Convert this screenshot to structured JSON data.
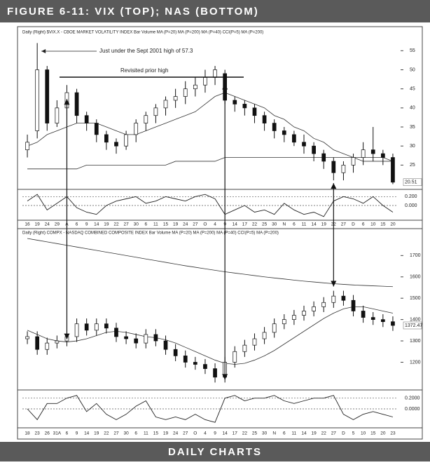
{
  "header": {
    "title": "Figure 6-11: VIX (top); NAS (bottom)"
  },
  "footer": {
    "title": "Daily Charts"
  },
  "chart_data": [
    {
      "type": "candlestick",
      "title": "Daily   (Right) $VIX.X - CBOE MARKET VOLATILITY INDEX     Bar   Volume   MA (P=20)   MA (P=200)   MA (P=40)   CCI(P=5)   MA (P=200)",
      "annotations": [
        "Just under the Sept 2001 high of 57.3",
        "Revisited prior high"
      ],
      "last_label": "20.51",
      "ylim": [
        19,
        58
      ],
      "yticks": [
        25,
        30,
        35,
        40,
        45,
        50,
        55
      ],
      "open": [
        29,
        34,
        50,
        36,
        40,
        44,
        38,
        36,
        33,
        31,
        30,
        33,
        36,
        38,
        40,
        42,
        43,
        45,
        46,
        48,
        49,
        42,
        41,
        40,
        38,
        36,
        34,
        33,
        31,
        30,
        28,
        26,
        23,
        25,
        27,
        29,
        28,
        27
      ],
      "high": [
        33,
        57,
        51,
        42,
        46,
        45,
        39,
        37,
        34,
        32,
        34,
        37,
        39,
        41,
        43,
        45,
        47,
        48,
        50,
        51,
        50,
        43,
        42,
        41,
        39,
        37,
        35,
        34,
        33,
        31,
        29,
        27,
        26,
        28,
        31,
        35,
        29,
        28
      ],
      "low": [
        27,
        32,
        34,
        35,
        38,
        36,
        34,
        31,
        29,
        28,
        29,
        31,
        34,
        36,
        38,
        40,
        41,
        43,
        44,
        46,
        41,
        39,
        38,
        36,
        34,
        32,
        31,
        30,
        28,
        26,
        24,
        21,
        21,
        23,
        25,
        26,
        25,
        20
      ],
      "close": [
        31,
        50,
        36,
        40,
        44,
        38,
        36,
        33,
        31,
        30,
        33,
        36,
        38,
        40,
        42,
        43,
        45,
        46,
        48,
        50,
        42,
        41,
        40,
        38,
        36,
        34,
        33,
        31,
        30,
        28,
        26,
        23,
        25,
        27,
        29,
        28,
        27,
        20.51
      ],
      "series": [
        {
          "color": "#333333",
          "values": [
            30,
            31,
            33,
            34,
            35,
            36,
            36,
            36,
            35,
            34,
            33,
            33,
            34,
            35,
            36,
            37,
            38,
            39,
            41,
            43,
            44,
            43,
            42,
            41,
            40,
            38,
            37,
            35,
            34,
            32,
            31,
            29,
            28,
            27,
            27,
            27,
            27,
            26
          ]
        },
        {
          "color": "#333333",
          "values": [
            24,
            24,
            24,
            24,
            24,
            24,
            25,
            25,
            25,
            25,
            25,
            25,
            25,
            25,
            25,
            26,
            26,
            26,
            26,
            26,
            27,
            27,
            27,
            27,
            27,
            27,
            27,
            27,
            27,
            27,
            27,
            27,
            27,
            27,
            26,
            26,
            26,
            26
          ]
        }
      ]
    },
    {
      "type": "line",
      "ylim": [
        -0.3,
        0.3
      ],
      "yticks": [
        {
          "value": 0.2,
          "label": "0.200"
        },
        {
          "value": 0,
          "label": "0.000"
        }
      ],
      "categories": [
        "16",
        "19",
        "24",
        "29",
        "A",
        "6",
        "9",
        "14",
        "19",
        "22",
        "27",
        "30",
        "6",
        "11",
        "15",
        "19",
        "24",
        "27",
        "O",
        "4",
        "9",
        "14",
        "17",
        "22",
        "25",
        "30",
        "N",
        "6",
        "11",
        "14",
        "19",
        "22",
        "27",
        "D",
        "6",
        "10",
        "15",
        "20"
      ],
      "values": [
        0.1,
        0.25,
        -0.1,
        0.05,
        0.2,
        -0.05,
        -0.15,
        -0.2,
        0.0,
        0.1,
        0.15,
        0.2,
        0.05,
        0.1,
        0.2,
        0.15,
        0.1,
        0.2,
        0.25,
        0.15,
        -0.2,
        -0.1,
        0.0,
        -0.15,
        -0.1,
        -0.2,
        0.05,
        -0.1,
        -0.2,
        -0.15,
        -0.25,
        0.1,
        0.2,
        0.15,
        0.05,
        0.2,
        0.0,
        -0.15
      ],
      "color": "#222222"
    },
    {
      "type": "candlestick",
      "title": "Daily   (Right) COMPX - NASDAQ COMBINED COMPOSITE INDEX     Bar   Volume   MA (P=20)   MA (P=200)   MA (P=40)   CCI(P=5)   MA (P=200)",
      "last_label": "1372.47",
      "ylim": [
        1080,
        1780
      ],
      "yticks": [
        1200,
        1300,
        1400,
        1500,
        1600,
        1700
      ],
      "open": [
        1310,
        1320,
        1260,
        1290,
        1300,
        1320,
        1380,
        1350,
        1380,
        1360,
        1320,
        1310,
        1290,
        1330,
        1300,
        1260,
        1230,
        1200,
        1190,
        1170,
        1130,
        1200,
        1250,
        1280,
        1310,
        1340,
        1380,
        1400,
        1420,
        1440,
        1460,
        1480,
        1510,
        1490,
        1440,
        1410,
        1400,
        1390
      ],
      "high": [
        1345,
        1345,
        1315,
        1325,
        1345,
        1405,
        1405,
        1405,
        1405,
        1385,
        1345,
        1335,
        1355,
        1355,
        1325,
        1285,
        1255,
        1225,
        1215,
        1195,
        1225,
        1275,
        1305,
        1335,
        1365,
        1405,
        1425,
        1445,
        1465,
        1485,
        1505,
        1535,
        1535,
        1515,
        1465,
        1435,
        1425,
        1415
      ],
      "low": [
        1285,
        1235,
        1235,
        1265,
        1275,
        1295,
        1325,
        1325,
        1335,
        1295,
        1285,
        1265,
        1265,
        1275,
        1235,
        1205,
        1175,
        1165,
        1145,
        1105,
        1105,
        1175,
        1225,
        1255,
        1285,
        1315,
        1355,
        1375,
        1395,
        1415,
        1435,
        1455,
        1465,
        1415,
        1385,
        1375,
        1365,
        1347
      ],
      "close": [
        1320,
        1260,
        1290,
        1300,
        1320,
        1380,
        1350,
        1380,
        1360,
        1320,
        1310,
        1290,
        1330,
        1300,
        1260,
        1230,
        1200,
        1190,
        1170,
        1130,
        1200,
        1250,
        1280,
        1310,
        1340,
        1380,
        1400,
        1420,
        1440,
        1460,
        1480,
        1510,
        1490,
        1440,
        1410,
        1400,
        1390,
        1372.47
      ],
      "series": [
        {
          "color": "#333333",
          "values": [
            1780,
            1772,
            1764,
            1756,
            1748,
            1740,
            1732,
            1724,
            1716,
            1708,
            1700,
            1692,
            1684,
            1676,
            1668,
            1660,
            1652,
            1645,
            1638,
            1631,
            1624,
            1618,
            1612,
            1606,
            1600,
            1595,
            1590,
            1585,
            1580,
            1576,
            1572,
            1568,
            1565,
            1562,
            1560,
            1558,
            1556,
            1554
          ]
        },
        {
          "color": "#333333",
          "values": [
            1350,
            1330,
            1310,
            1300,
            1295,
            1300,
            1310,
            1325,
            1340,
            1345,
            1340,
            1330,
            1320,
            1315,
            1305,
            1290,
            1270,
            1250,
            1230,
            1210,
            1195,
            1190,
            1195,
            1210,
            1230,
            1255,
            1285,
            1315,
            1345,
            1375,
            1405,
            1430,
            1450,
            1460,
            1460,
            1450,
            1440,
            1430
          ]
        }
      ]
    },
    {
      "type": "line",
      "ylim": [
        -0.3,
        0.3
      ],
      "yticks": [
        {
          "value": 0.2,
          "label": "0.2000"
        },
        {
          "value": 0,
          "label": "0.0000"
        }
      ],
      "categories": [
        "18",
        "23",
        "26",
        "31A",
        "6",
        "9",
        "14",
        "19",
        "22",
        "27",
        "30",
        "6",
        "11",
        "15",
        "19",
        "24",
        "27",
        "O",
        "4",
        "9",
        "14",
        "17",
        "22",
        "25",
        "30",
        "N",
        "6",
        "11",
        "14",
        "19",
        "22",
        "27",
        "D",
        "5",
        "10",
        "15",
        "20",
        "23"
      ],
      "values": [
        0.0,
        -0.2,
        0.1,
        0.1,
        0.2,
        0.25,
        -0.05,
        0.1,
        -0.1,
        -0.2,
        -0.1,
        0.05,
        0.15,
        -0.15,
        -0.2,
        -0.15,
        -0.2,
        -0.1,
        -0.2,
        -0.25,
        0.2,
        0.25,
        0.15,
        0.2,
        0.2,
        0.25,
        0.15,
        0.1,
        0.15,
        0.2,
        0.2,
        0.25,
        -0.1,
        -0.2,
        -0.1,
        -0.05,
        -0.1,
        -0.15
      ],
      "color": "#222222"
    }
  ]
}
